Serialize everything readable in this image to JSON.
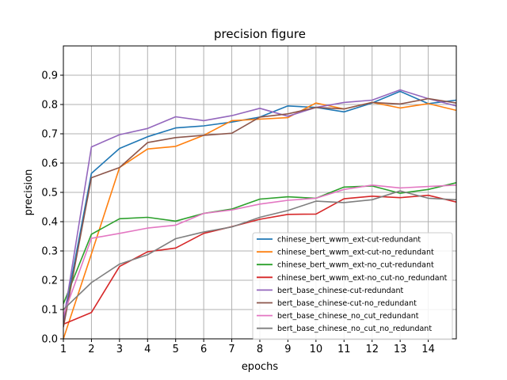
{
  "chart_data": {
    "type": "line",
    "title": "precision figure",
    "xlabel": "epochs",
    "ylabel": "precision",
    "xlim": [
      1,
      15
    ],
    "ylim": [
      0.0,
      1.0
    ],
    "xticks": [
      1,
      2,
      3,
      4,
      5,
      6,
      7,
      8,
      9,
      10,
      11,
      12,
      13,
      14
    ],
    "yticks": [
      0.0,
      0.1,
      0.2,
      0.3,
      0.4,
      0.5,
      0.6,
      0.7,
      0.8,
      0.9
    ],
    "grid": true,
    "legend_position": "lower-right",
    "x": [
      1,
      2,
      3,
      4,
      5,
      6,
      7,
      8,
      9,
      10,
      11,
      12,
      13,
      14,
      15
    ],
    "series": [
      {
        "name": "chinese_bert_wwm_ext-cut-redundant",
        "color": "#1f77b4",
        "values": [
          0.06,
          0.565,
          0.65,
          0.69,
          0.72,
          0.727,
          0.74,
          0.757,
          0.795,
          0.79,
          0.775,
          0.805,
          0.845,
          0.803,
          0.815
        ]
      },
      {
        "name": "chinese_bert_wwm_ext-cut-no_redundant",
        "color": "#ff7f0e",
        "values": [
          0.0,
          0.29,
          0.585,
          0.648,
          0.657,
          0.695,
          0.745,
          0.75,
          0.755,
          0.805,
          0.785,
          0.807,
          0.788,
          0.803,
          0.78
        ]
      },
      {
        "name": "chinese_bert_wwm_ext-no_cut-redundant",
        "color": "#2ca02c",
        "values": [
          0.12,
          0.357,
          0.41,
          0.415,
          0.402,
          0.428,
          0.443,
          0.477,
          0.485,
          0.48,
          0.518,
          0.522,
          0.497,
          0.51,
          0.533
        ]
      },
      {
        "name": "chinese_bert_wwm_ext-no_cut-no_redundant",
        "color": "#d62728",
        "values": [
          0.05,
          0.09,
          0.247,
          0.297,
          0.31,
          0.36,
          0.383,
          0.408,
          0.425,
          0.426,
          0.478,
          0.487,
          0.482,
          0.49,
          0.467
        ]
      },
      {
        "name": "bert_base_chinese-cut-redundant",
        "color": "#9467bd",
        "values": [
          0.06,
          0.655,
          0.697,
          0.718,
          0.758,
          0.745,
          0.762,
          0.787,
          0.76,
          0.79,
          0.807,
          0.815,
          0.85,
          0.82,
          0.795
        ]
      },
      {
        "name": "bert_base_chinese-cut-no_redundant",
        "color": "#8c564b",
        "values": [
          0.04,
          0.55,
          0.585,
          0.67,
          0.687,
          0.695,
          0.702,
          0.757,
          0.768,
          0.79,
          0.785,
          0.807,
          0.802,
          0.82,
          0.805
        ]
      },
      {
        "name": "bert_base_chinese_no_cut_redundant",
        "color": "#e377c2",
        "values": [
          0.08,
          0.343,
          0.36,
          0.378,
          0.388,
          0.428,
          0.44,
          0.46,
          0.473,
          0.48,
          0.51,
          0.525,
          0.515,
          0.52,
          0.525
        ]
      },
      {
        "name": "bert_base_chinese_no_cut_no_redundant",
        "color": "#7f7f7f",
        "values": [
          0.1,
          0.192,
          0.255,
          0.287,
          0.342,
          0.365,
          0.382,
          0.415,
          0.438,
          0.47,
          0.465,
          0.475,
          0.505,
          0.48,
          0.475
        ]
      }
    ]
  }
}
